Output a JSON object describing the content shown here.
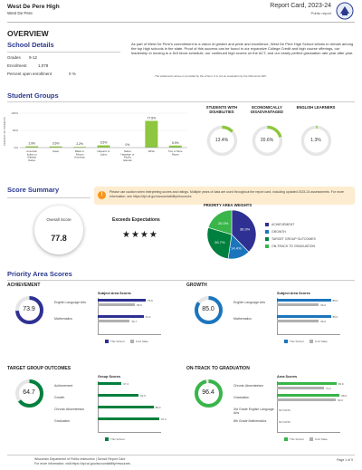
{
  "header": {
    "school_name": "West De Pere High",
    "district": "West De Pere",
    "report_title": "Report Card, 2023-24",
    "report_type": "Public report"
  },
  "overview": {
    "heading": "OVERVIEW",
    "details_title": "School Details",
    "grades_label": "Grades",
    "grades_value": "9-12",
    "enrollment_label": "Enrollment",
    "enrollment_value": "1,078",
    "open_enrollment_label": "Percent open enrollment",
    "open_enrollment_value": "0 %",
    "statement": "As part of West De Pere's commitment to a vision of greater and pride and excellence, West De Pere High School strives to remain among the top high schools in the state. Proof of this success can be found in our expansive College Credit and high course offerings, our leadership in moving to a 5x3 block schedule, our continued high scores on the ACT, and our nearly perfect graduation rate year after year.",
    "statement_note": "The statements above is provided by the school. It is not an evaluation by the Wisconsin DPI."
  },
  "student_groups": {
    "title": "Student Groups",
    "y_axis_label": "PERCENT OF STUDENTS",
    "chart_data": {
      "type": "bar",
      "categories": [
        "American Indian or Alaskan Native",
        "Asian",
        "Black or African American",
        "Hispanic or Latino",
        "Native Hawaiian or Pacific Islander",
        "White",
        "Two or More Races"
      ],
      "values": [
        3.9,
        3.6,
        2.2,
        6.5,
        0,
        77.8,
        5.9
      ],
      "value_labels": [
        "3.9%",
        "3.6%",
        "2.2%",
        "6.5%",
        "0%",
        "77.8%",
        "5.9%"
      ],
      "ylim": [
        0,
        100
      ],
      "yticks": [
        "100%",
        "50%",
        "0%"
      ]
    },
    "donuts": [
      {
        "title": "STUDENTS WITH DISABILITIES",
        "value": 13.4,
        "label": "13.4%"
      },
      {
        "title": "ECONOMICALLY DISADVANTAGED",
        "value": 20.6,
        "label": "20.6%"
      },
      {
        "title": "ENGLISH LEARNERS",
        "value": 1.3,
        "label": "1.3%"
      }
    ]
  },
  "score_summary": {
    "title": "Score Summary",
    "notice": "Please use caution when interpreting scores and ratings. Multiple years of data are used throughout the report card, including updated 2023-24 assessments. For more information, see https://dpi.wi.gov/accountability/resources",
    "overall_label": "Overall Score",
    "overall_value": "77.8",
    "rating": "Exceeds Expectations",
    "stars": "★★★★",
    "weights_title": "PRIORITY AREA WEIGHTS",
    "weights": [
      {
        "name": "ACHIEVEMENT",
        "value": 36.9,
        "label": "36.9%",
        "color": "#2e3192"
      },
      {
        "name": "GROWTH",
        "value": 14.4,
        "label": "14.4%",
        "color": "#1c75bc"
      },
      {
        "name": "TARGET GROUP OUTCOMES",
        "value": 26.7,
        "label": "26.7%",
        "color": "#00803e"
      },
      {
        "name": "ON-TRACK TO GRADUATION",
        "value": 20.0,
        "label": "20.0%",
        "color": "#39b54a"
      }
    ]
  },
  "priority_areas": {
    "title": "Priority Area Scores",
    "this_school_label": "This School",
    "state_label": "9-12 State",
    "achievement": {
      "title": "ACHIEVEMENT",
      "score": "73.9",
      "score_value": 73.9,
      "color": "#2e3192",
      "chart_title": "Subject Area Scores",
      "rows": [
        {
          "label": "English Language Arts",
          "school": 75.6,
          "school_label": "75.6",
          "state": 58.5,
          "state_label": "58.5"
        },
        {
          "label": "Mathematics",
          "school": 72.2,
          "school_label": "72.2",
          "state": 50.7,
          "state_label": "50.7"
        }
      ]
    },
    "growth": {
      "title": "GROWTH",
      "score": "85.0",
      "score_value": 85.0,
      "color": "#1c75bc",
      "chart_title": "Subject Area Scores",
      "rows": [
        {
          "label": "English Language Arts",
          "school": 85.0,
          "school_label": "85.0",
          "state": 66.0,
          "state_label": "66.0"
        },
        {
          "label": "Mathematics",
          "school": 85.0,
          "school_label": "85.0",
          "state": 66.0,
          "state_label": "66.0"
        }
      ]
    },
    "target": {
      "title": "TARGET GROUP OUTCOMES",
      "score": "64.7",
      "score_value": 64.7,
      "color": "#00803e",
      "chart_title": "Group Scores",
      "rows": [
        {
          "label": "Achievement",
          "school": 37.4,
          "school_label": "37.4"
        },
        {
          "label": "Growth",
          "school": 64.5,
          "school_label": "64.5"
        },
        {
          "label": "Chronic Absenteeism",
          "school": 88.0,
          "school_label": "88.0"
        },
        {
          "label": "Graduation",
          "school": 97.2,
          "school_label": "97.2"
        }
      ]
    },
    "ontrack": {
      "title": "ON-TRACK TO GRADUATION",
      "score": "96.4",
      "score_value": 96.4,
      "color": "#39b54a",
      "chart_title": "Area Scores",
      "rows": [
        {
          "label": "Chronic Absenteeism",
          "school": 93.9,
          "school_label": "93.9",
          "state": 74.0,
          "state_label": "74.0"
        },
        {
          "label": "Graduation",
          "school": 98.9,
          "school_label": "98.9",
          "state": 93.0,
          "state_label": "93.0"
        },
        {
          "label": "3rd Grade English Language Arts",
          "na": "NO DATA"
        },
        {
          "label": "8th Grade Mathematics",
          "na": "NO DATA"
        }
      ]
    }
  },
  "footer": {
    "left1": "Wisconsin Department of Public Instruction | School Report Card",
    "left2": "For more information, visit https://dpi.wi.gov/accountability/resources",
    "page": "Page 1 of 9"
  },
  "colors": {
    "accent_blue": "#2b3990",
    "group_green": "#8dc63f",
    "state_gray": "#b0b0b0"
  }
}
